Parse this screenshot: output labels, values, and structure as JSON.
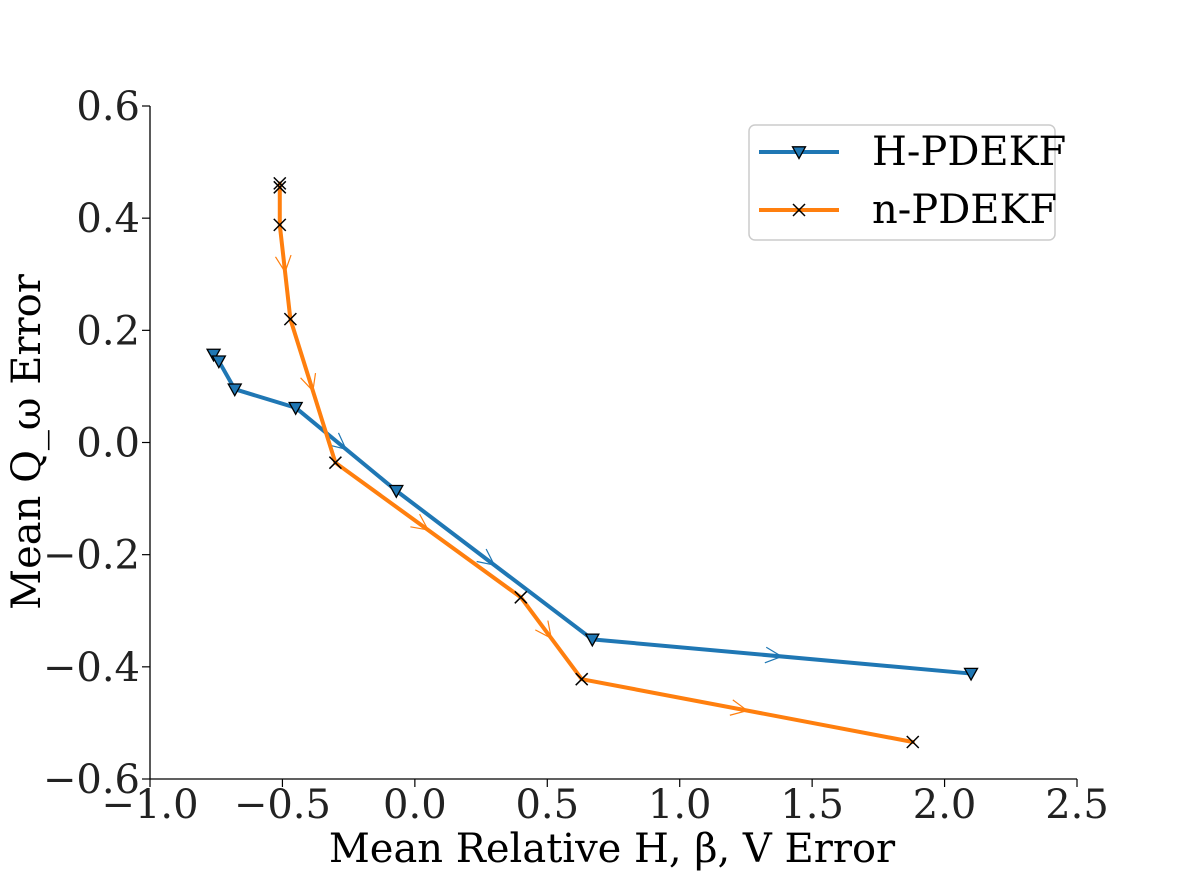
{
  "chart_data": {
    "type": "line",
    "xlabel": "Mean Relative H, β, V Error",
    "ylabel": "Mean Q_ω Error",
    "xlim": [
      -1.0,
      2.5
    ],
    "ylim": [
      -0.6,
      0.6
    ],
    "x_ticks": [
      -1.0,
      -0.5,
      0.0,
      0.5,
      1.0,
      1.5,
      2.0,
      2.5
    ],
    "x_tick_labels": [
      "−1.0",
      "−0.5",
      "0.0",
      "0.5",
      "1.0",
      "1.5",
      "2.0",
      "2.5"
    ],
    "y_ticks": [
      -0.6,
      -0.4,
      -0.2,
      0.0,
      0.2,
      0.4,
      0.6
    ],
    "y_tick_labels": [
      "−0.6",
      "−0.4",
      "−0.2",
      "0.0",
      "0.2",
      "0.4",
      "0.6"
    ],
    "grid": false,
    "legend_position": "top-right",
    "series": [
      {
        "name": "H-PDEKF",
        "color": "#1f77b4",
        "marker": "triangle-down",
        "x": [
          -0.76,
          -0.74,
          -0.68,
          -0.45,
          -0.07,
          0.67,
          2.1
        ],
        "y": [
          0.157,
          0.145,
          0.095,
          0.062,
          -0.086,
          -0.351,
          -0.412
        ]
      },
      {
        "name": "n-PDEKF",
        "color": "#ff7f0e",
        "marker": "x",
        "x": [
          -0.51,
          -0.51,
          -0.51,
          -0.47,
          -0.3,
          0.4,
          0.63,
          1.88
        ],
        "y": [
          0.462,
          0.455,
          0.388,
          0.22,
          -0.036,
          -0.276,
          -0.422,
          -0.534
        ]
      }
    ]
  }
}
